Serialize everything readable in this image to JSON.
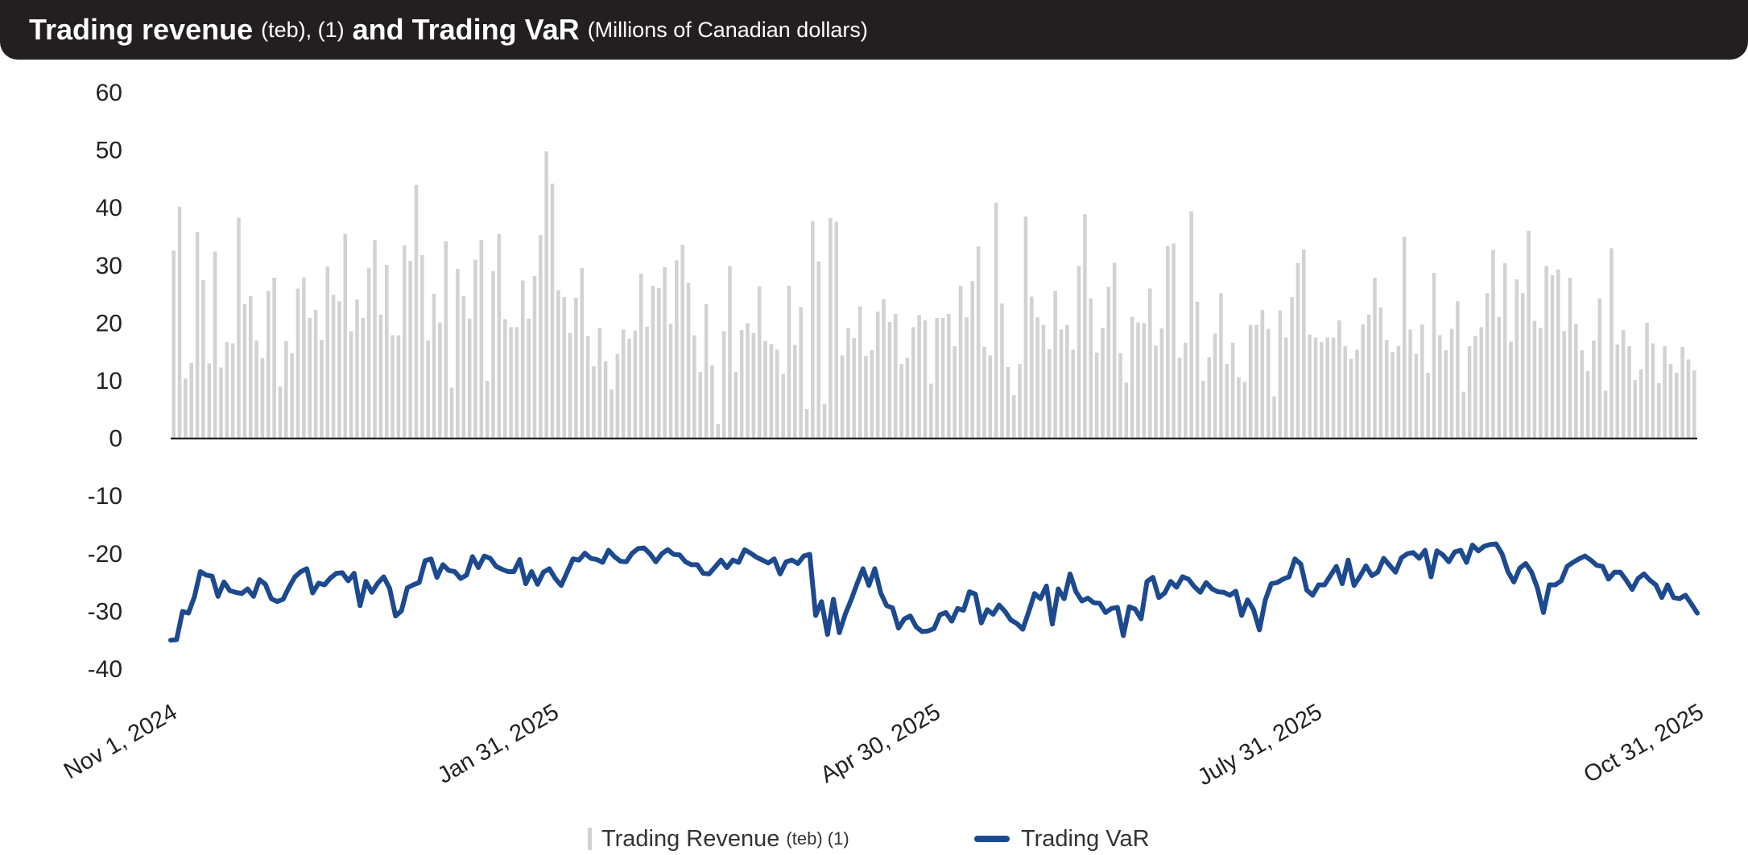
{
  "header": {
    "title_main_1": "Trading revenue",
    "title_small_1": "(teb), (1)",
    "title_main_2": "and Trading VaR",
    "title_small_2": "(Millions of Canadian dollars)"
  },
  "legend": {
    "revenue_label": "Trading Revenue",
    "revenue_suffix": "(teb) (1)",
    "var_label": "Trading VaR"
  },
  "colors": {
    "header_bg": "#231f20",
    "bars": "#d2d2d2",
    "var_line": "#1d4a8f",
    "axis": "#111111"
  },
  "chart_data": {
    "type": "bar+line",
    "title": "Trading revenue (teb), (1) and Trading VaR (Millions of Canadian dollars)",
    "ylim": [
      -40,
      60
    ],
    "yticks": [
      60,
      50,
      40,
      30,
      20,
      10,
      0,
      -10,
      -20,
      -30,
      -40
    ],
    "xticks": [
      "Nov 1, 2024",
      "Jan 31, 2025",
      "Apr 30, 2025",
      "July 31, 2025",
      "Oct 31, 2025"
    ],
    "grid": false,
    "series": [
      {
        "name": "Trading Revenue (teb) (1)",
        "type": "bar",
        "values": [
          32.6,
          40.2,
          10.4,
          13.1,
          35.8,
          27.5,
          13.0,
          32.4,
          12.3,
          16.7,
          16.5,
          38.3,
          23.3,
          24.7,
          17.0,
          13.9,
          25.6,
          27.9,
          9.0,
          16.9,
          14.8,
          26.0,
          27.9,
          20.9,
          22.3,
          17.1,
          29.8,
          24.9,
          23.8,
          35.5,
          18.6,
          24.1,
          20.9,
          29.6,
          34.4,
          21.5,
          30.1,
          17.9,
          17.9,
          33.5,
          30.8,
          44.0,
          31.8,
          17.0,
          25.1,
          20.1,
          34.2,
          8.8,
          29.4,
          24.7,
          20.8,
          31.0,
          34.4,
          10.0,
          29.0,
          35.5,
          20.7,
          19.3,
          19.3,
          27.4,
          20.8,
          28.2,
          35.3,
          49.8,
          44.2,
          25.7,
          24.5,
          18.3,
          24.4,
          29.6,
          17.8,
          12.5,
          19.2,
          13.4,
          8.5,
          14.7,
          18.9,
          17.3,
          18.7,
          28.6,
          19.4,
          26.5,
          26.1,
          29.7,
          19.9,
          30.9,
          33.6,
          27.0,
          17.9,
          11.5,
          23.3,
          12.7,
          2.5,
          18.6,
          29.9,
          11.5,
          18.8,
          20.0,
          18.3,
          26.4,
          16.9,
          16.4,
          15.4,
          11.2,
          26.5,
          16.2,
          22.8,
          5.1,
          37.7,
          30.7,
          6.0,
          38.2,
          37.6,
          14.4,
          19.2,
          17.4,
          22.9,
          14.3,
          15.3,
          22.0,
          24.2,
          20.2,
          21.6,
          12.9,
          14.0,
          19.3,
          21.4,
          20.5,
          9.5,
          20.9,
          20.9,
          21.6,
          16.0,
          26.5,
          21.0,
          27.3,
          33.3,
          15.9,
          14.4,
          40.9,
          23.4,
          12.4,
          7.5,
          12.9,
          38.5,
          24.6,
          21.0,
          19.7,
          15.5,
          25.6,
          18.9,
          19.7,
          15.4,
          29.9,
          38.9,
          24.3,
          14.9,
          19.2,
          26.3,
          30.5,
          14.8,
          9.7,
          21.1,
          20.1,
          20.0,
          26.0,
          16.1,
          19.1,
          33.4,
          33.8,
          14.0,
          16.6,
          39.4,
          23.7,
          10.0,
          14.1,
          18.2,
          25.2,
          12.9,
          16.6,
          10.6,
          9.8,
          19.7,
          19.7,
          22.3,
          19.0,
          7.3,
          22.2,
          17.5,
          24.5,
          30.4,
          32.8,
          18.0,
          17.5,
          16.7,
          17.5,
          17.5,
          20.5,
          16.0,
          13.8,
          15.4,
          19.8,
          21.5,
          27.9,
          22.7,
          17.1,
          15.0,
          16.0,
          35.0,
          18.9,
          14.7,
          19.8,
          11.4,
          28.7,
          17.9,
          15.3,
          19.0,
          23.8,
          8.1,
          16.0,
          17.8,
          19.3,
          25.2,
          32.7,
          21.1,
          30.4,
          16.8,
          27.6,
          25.2,
          36.0,
          20.4,
          19.2,
          29.9,
          28.3,
          29.3,
          18.6,
          27.9,
          19.9,
          15.3,
          11.7,
          17.0,
          24.3,
          8.3,
          33.0,
          16.3,
          18.8,
          16.0,
          10.1,
          12.0,
          20.1,
          16.5,
          9.6,
          16.0,
          12.9,
          11.4,
          15.9,
          13.7,
          11.8
        ]
      },
      {
        "name": "Trading VaR",
        "type": "line",
        "values": [
          -35.0,
          -34.9,
          -30.0,
          -30.3,
          -27.5,
          -23.1,
          -23.7,
          -23.9,
          -27.4,
          -24.9,
          -26.4,
          -26.7,
          -26.9,
          -26.1,
          -27.4,
          -24.5,
          -25.3,
          -27.8,
          -28.3,
          -27.9,
          -25.8,
          -24.0,
          -23.1,
          -22.6,
          -26.8,
          -25.1,
          -25.4,
          -24.2,
          -23.4,
          -23.3,
          -24.7,
          -23.4,
          -29.0,
          -24.8,
          -26.7,
          -25.1,
          -24.0,
          -26.0,
          -30.8,
          -29.9,
          -25.9,
          -25.4,
          -25.0,
          -21.2,
          -20.9,
          -24.1,
          -21.9,
          -22.9,
          -23.1,
          -24.3,
          -23.7,
          -20.5,
          -22.4,
          -20.4,
          -20.8,
          -22.2,
          -22.7,
          -23.1,
          -23.1,
          -21.0,
          -25.2,
          -23.1,
          -25.3,
          -23.2,
          -22.6,
          -24.3,
          -25.5,
          -23.2,
          -20.9,
          -21.1,
          -19.9,
          -20.8,
          -21.0,
          -21.5,
          -19.4,
          -20.5,
          -21.3,
          -21.4,
          -19.9,
          -19.1,
          -19.0,
          -20.0,
          -21.4,
          -20.0,
          -19.3,
          -20.1,
          -20.2,
          -21.4,
          -21.9,
          -21.9,
          -23.4,
          -23.5,
          -22.3,
          -21.1,
          -22.4,
          -21.1,
          -21.5,
          -19.3,
          -19.9,
          -20.6,
          -21.1,
          -21.6,
          -20.9,
          -23.5,
          -21.4,
          -21.1,
          -21.7,
          -20.4,
          -20.1,
          -30.7,
          -28.3,
          -34.0,
          -27.9,
          -33.7,
          -30.5,
          -28.0,
          -25.2,
          -22.6,
          -25.5,
          -22.6,
          -26.8,
          -29.0,
          -29.4,
          -32.9,
          -31.3,
          -30.8,
          -32.7,
          -33.5,
          -33.4,
          -33.0,
          -30.6,
          -30.2,
          -31.7,
          -29.5,
          -29.8,
          -26.6,
          -27.0,
          -32.0,
          -29.7,
          -30.5,
          -28.9,
          -30.0,
          -31.5,
          -32.1,
          -33.1,
          -30.1,
          -26.9,
          -27.8,
          -25.6,
          -32.2,
          -26.1,
          -27.8,
          -23.5,
          -26.6,
          -28.2,
          -27.7,
          -28.5,
          -28.6,
          -30.2,
          -29.5,
          -29.3,
          -34.2,
          -29.2,
          -29.6,
          -31.3,
          -24.8,
          -24.1,
          -27.6,
          -26.8,
          -24.8,
          -25.8,
          -24.0,
          -24.4,
          -25.7,
          -26.7,
          -25.0,
          -26.1,
          -26.6,
          -26.7,
          -27.2,
          -26.5,
          -30.7,
          -28.0,
          -29.7,
          -33.2,
          -28.0,
          -25.2,
          -25.0,
          -24.4,
          -24.0,
          -20.9,
          -21.8,
          -26.3,
          -27.2,
          -25.4,
          -25.4,
          -23.8,
          -22.2,
          -25.2,
          -21.1,
          -25.5,
          -23.9,
          -22.1,
          -23.8,
          -23.2,
          -20.8,
          -22.0,
          -23.2,
          -20.7,
          -20.0,
          -19.8,
          -20.8,
          -19.4,
          -24.0,
          -19.5,
          -20.2,
          -21.4,
          -19.7,
          -19.4,
          -21.5,
          -18.5,
          -19.5,
          -18.7,
          -18.4,
          -18.3,
          -20.0,
          -23.1,
          -24.9,
          -22.5,
          -21.7,
          -23.2,
          -26.0,
          -30.2,
          -25.4,
          -25.4,
          -24.7,
          -22.2,
          -21.5,
          -20.9,
          -20.4,
          -21.1,
          -22.0,
          -22.2,
          -24.4,
          -23.2,
          -23.2,
          -24.6,
          -26.2,
          -24.3,
          -23.5,
          -24.6,
          -25.4,
          -27.6,
          -25.4,
          -27.6,
          -27.8,
          -27.2,
          -28.7,
          -30.3
        ]
      }
    ]
  }
}
